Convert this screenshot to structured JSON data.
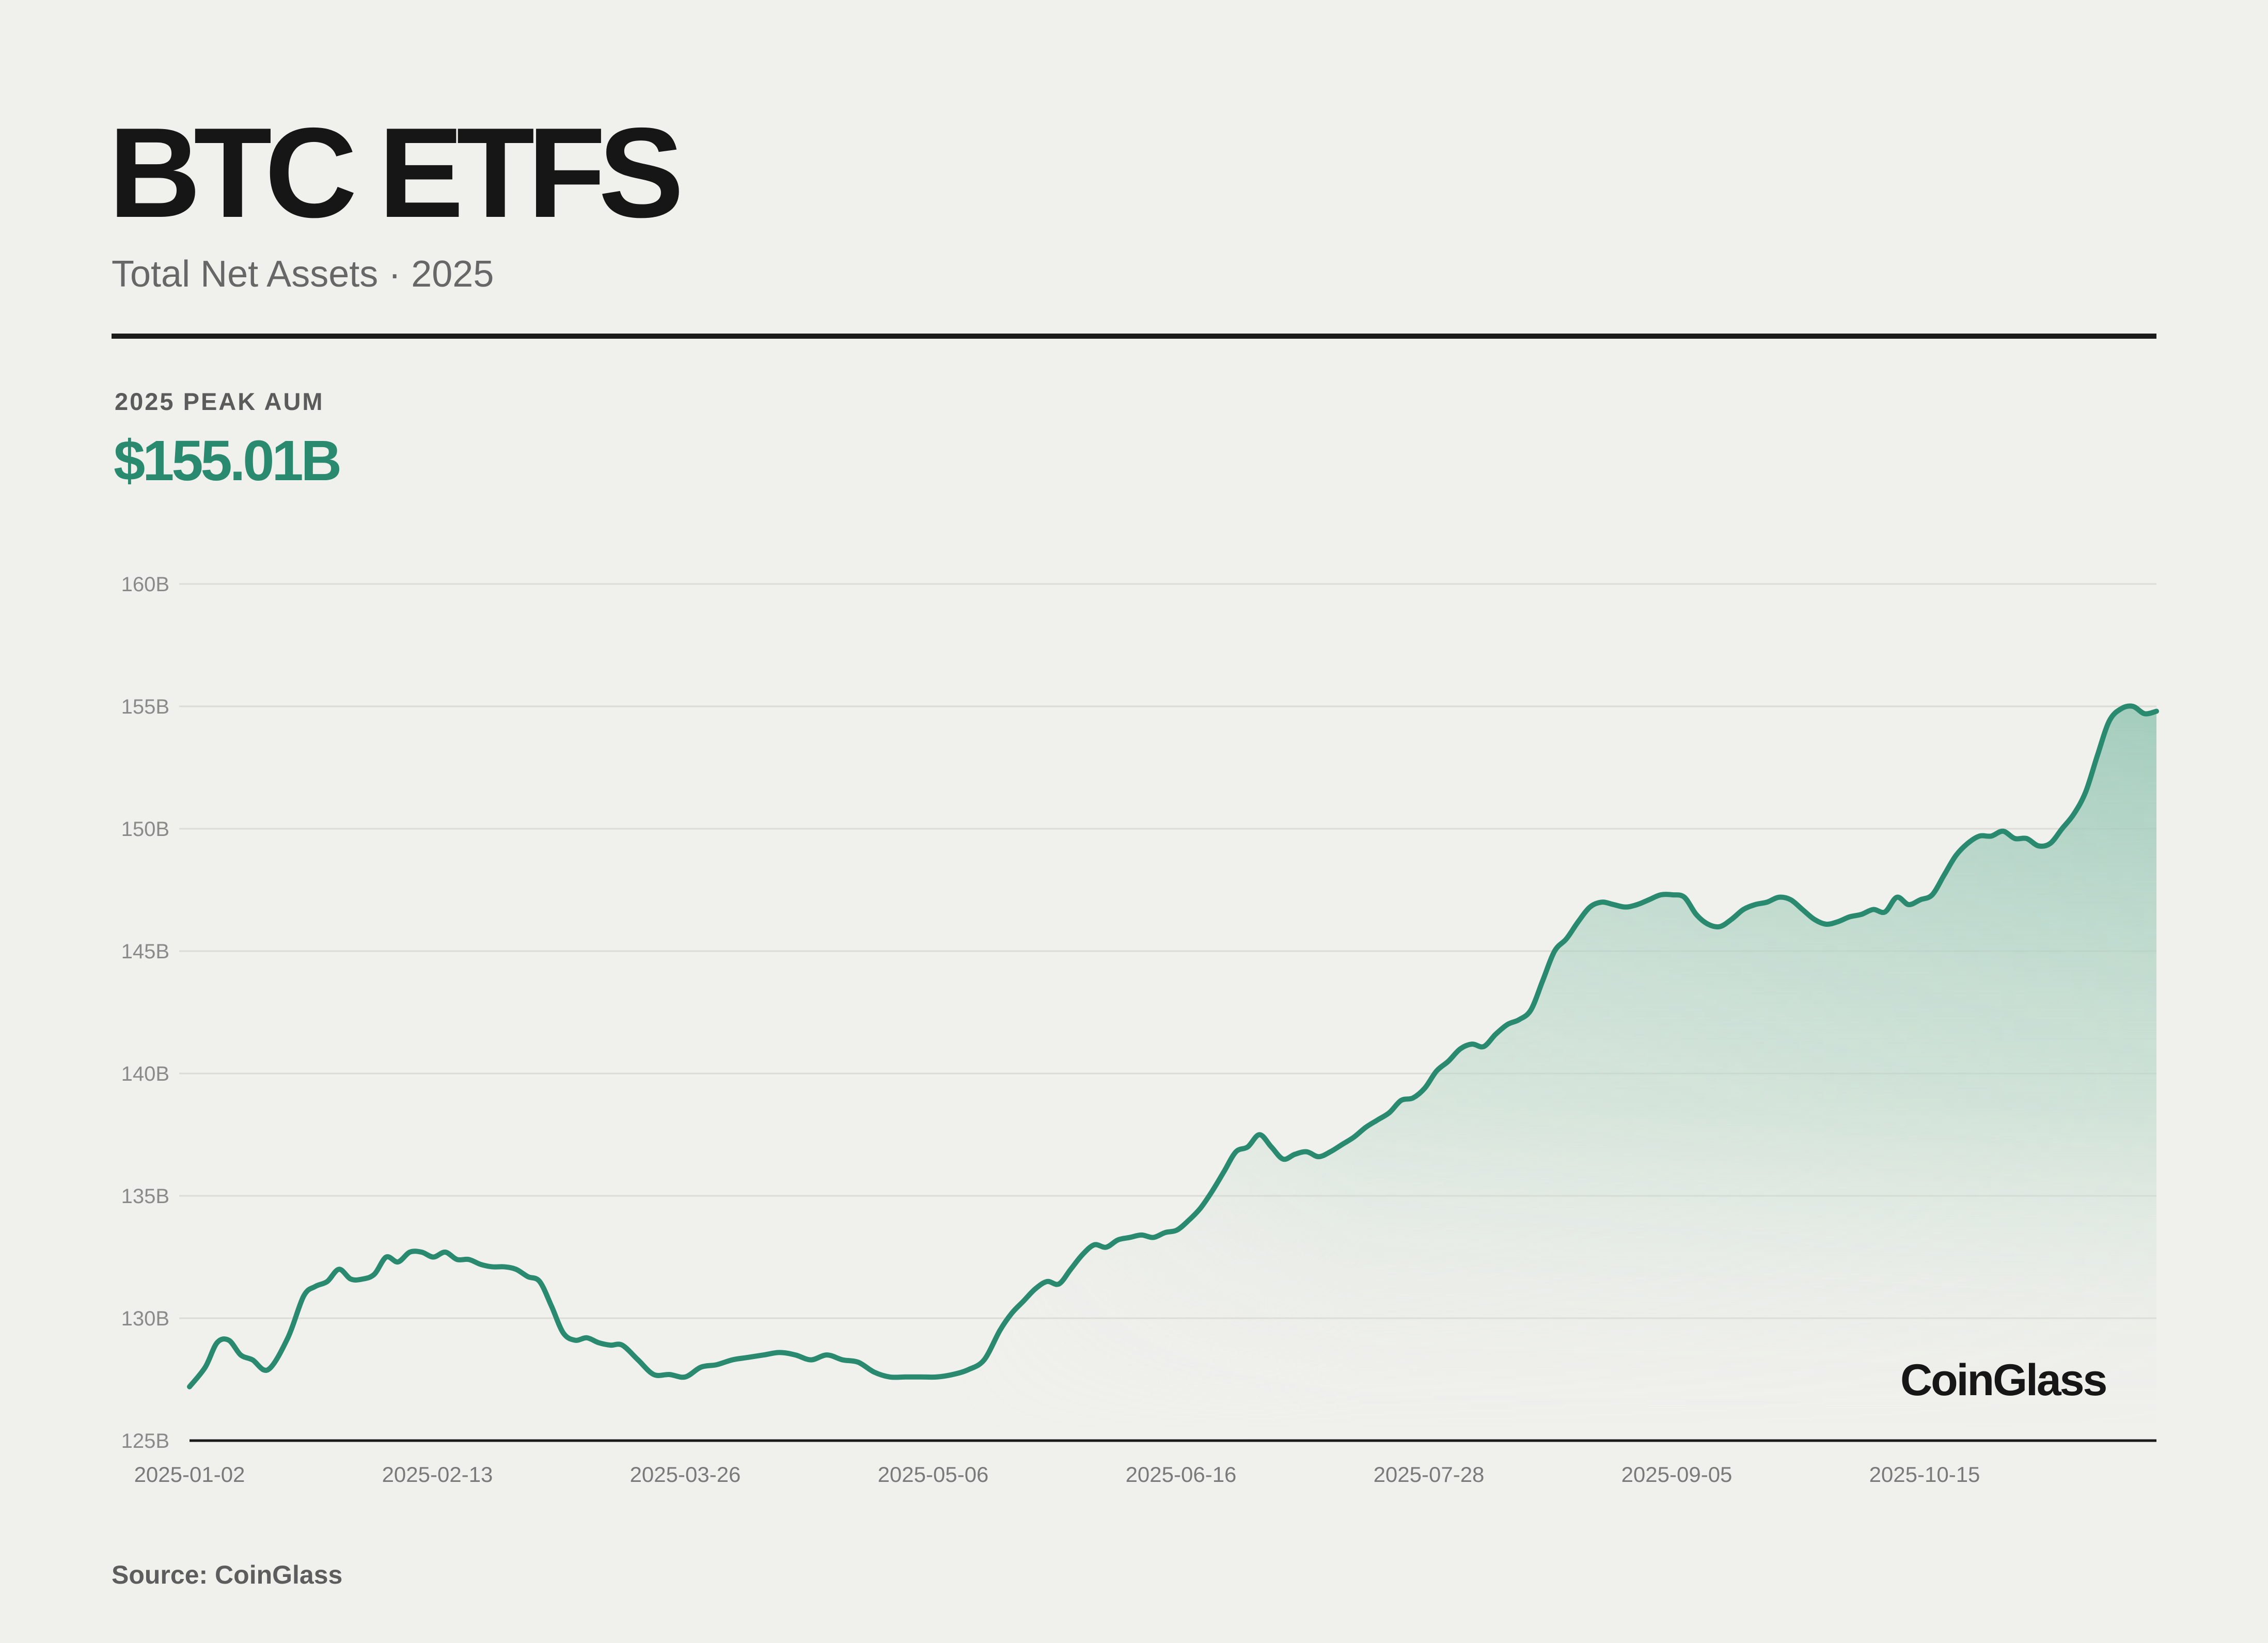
{
  "header": {
    "title": "BTC ETFS",
    "subtitle": "Total Net Assets · 2025"
  },
  "kpi": {
    "label": "2025 PEAK AUM",
    "value": "$155.01B"
  },
  "watermark": "CoinGlass",
  "source": "Source: CoinGlass",
  "colors": {
    "background": "#f0f0ec",
    "line": "#2a8a6f",
    "fill_top": "#9cc9b9",
    "grid": "#dcdcd6",
    "axis": "#1b1b1b",
    "text_dark": "#161616",
    "text_muted": "#676767"
  },
  "chart_data": {
    "type": "area",
    "title": "BTC ETFS",
    "subtitle": "Total Net Assets · 2025",
    "xlabel": "",
    "ylabel": "",
    "ylim": [
      125,
      160
    ],
    "yticks": [
      125,
      130,
      135,
      140,
      145,
      150,
      155,
      160
    ],
    "ytick_labels": [
      "125B",
      "130B",
      "135B",
      "140B",
      "145B",
      "150B",
      "155B",
      "160B"
    ],
    "xtick_labels": [
      "2025-01-02",
      "2025-02-13",
      "2025-03-26",
      "2025-05-06",
      "2025-06-16",
      "2025-07-28",
      "2025-09-05",
      "2025-10-15"
    ],
    "grid": true,
    "legend": "none",
    "series": [
      {
        "name": "Total Net Assets (B USD)",
        "x_frac": [
          0.0,
          0.008,
          0.014,
          0.02,
          0.026,
          0.032,
          0.04,
          0.05,
          0.058,
          0.064,
          0.07,
          0.076,
          0.082,
          0.088,
          0.094,
          0.1,
          0.106,
          0.112,
          0.118,
          0.124,
          0.13,
          0.136,
          0.142,
          0.148,
          0.154,
          0.16,
          0.166,
          0.172,
          0.178,
          0.184,
          0.19,
          0.196,
          0.202,
          0.208,
          0.214,
          0.22,
          0.228,
          0.236,
          0.244,
          0.252,
          0.26,
          0.268,
          0.276,
          0.284,
          0.292,
          0.3,
          0.308,
          0.316,
          0.324,
          0.332,
          0.34,
          0.348,
          0.356,
          0.364,
          0.372,
          0.38,
          0.388,
          0.396,
          0.404,
          0.412,
          0.418,
          0.424,
          0.43,
          0.436,
          0.442,
          0.448,
          0.454,
          0.46,
          0.466,
          0.472,
          0.478,
          0.484,
          0.49,
          0.496,
          0.502,
          0.508,
          0.514,
          0.52,
          0.526,
          0.532,
          0.538,
          0.544,
          0.55,
          0.556,
          0.562,
          0.568,
          0.574,
          0.58,
          0.586,
          0.592,
          0.598,
          0.604,
          0.61,
          0.616,
          0.622,
          0.628,
          0.634,
          0.64,
          0.646,
          0.652,
          0.658,
          0.664,
          0.67,
          0.676,
          0.682,
          0.688,
          0.694,
          0.7,
          0.706,
          0.712,
          0.718,
          0.724,
          0.73,
          0.736,
          0.742,
          0.748,
          0.754,
          0.76,
          0.766,
          0.772,
          0.778,
          0.784,
          0.79,
          0.796,
          0.802,
          0.808,
          0.814,
          0.82,
          0.826,
          0.832,
          0.838,
          0.844,
          0.85,
          0.856,
          0.862,
          0.868,
          0.874,
          0.88,
          0.886,
          0.892,
          0.898,
          0.904,
          0.91,
          0.916,
          0.922,
          0.928,
          0.934,
          0.94,
          0.946,
          0.952,
          0.958,
          0.964,
          0.97,
          0.976,
          0.982,
          0.988,
          0.994,
          1.0
        ],
        "values": [
          127.2,
          128.0,
          129.0,
          129.1,
          128.5,
          128.3,
          127.9,
          129.2,
          130.9,
          131.3,
          131.5,
          132.0,
          131.6,
          131.6,
          131.8,
          132.5,
          132.3,
          132.7,
          132.7,
          132.5,
          132.7,
          132.4,
          132.4,
          132.2,
          132.1,
          132.1,
          132.0,
          131.7,
          131.5,
          130.5,
          129.4,
          129.1,
          129.2,
          129.0,
          128.9,
          128.9,
          128.3,
          127.7,
          127.7,
          127.6,
          128.0,
          128.1,
          128.3,
          128.4,
          128.5,
          128.6,
          128.5,
          128.3,
          128.5,
          128.3,
          128.2,
          127.8,
          127.6,
          127.6,
          127.6,
          127.6,
          127.7,
          127.9,
          128.3,
          129.5,
          130.2,
          130.7,
          131.2,
          131.5,
          131.4,
          132.0,
          132.6,
          133.0,
          132.9,
          133.2,
          133.3,
          133.4,
          133.3,
          133.5,
          133.6,
          134.0,
          134.5,
          135.2,
          136.0,
          136.8,
          137.0,
          137.5,
          137.0,
          136.5,
          136.7,
          136.8,
          136.6,
          136.8,
          137.1,
          137.4,
          137.8,
          138.1,
          138.4,
          138.9,
          139.0,
          139.4,
          140.1,
          140.5,
          141.0,
          141.2,
          141.1,
          141.6,
          142.0,
          142.2,
          142.6,
          143.8,
          145.0,
          145.5,
          146.2,
          146.8,
          147.0,
          146.9,
          146.8,
          146.9,
          147.1,
          147.3,
          147.3,
          147.2,
          146.5,
          146.1,
          146.0,
          146.3,
          146.7,
          146.9,
          147.0,
          147.2,
          147.1,
          146.7,
          146.3,
          146.1,
          146.2,
          146.4,
          146.5,
          146.7,
          146.6,
          147.2,
          146.9,
          147.1,
          147.3,
          148.1,
          148.9,
          149.4,
          149.7,
          149.7,
          149.9,
          149.6,
          149.6,
          149.3,
          149.4,
          150.0,
          150.6,
          151.5,
          153.0,
          154.4,
          154.9,
          155.0,
          154.7,
          154.8
        ],
        "peak_value": 155.01
      }
    ]
  }
}
